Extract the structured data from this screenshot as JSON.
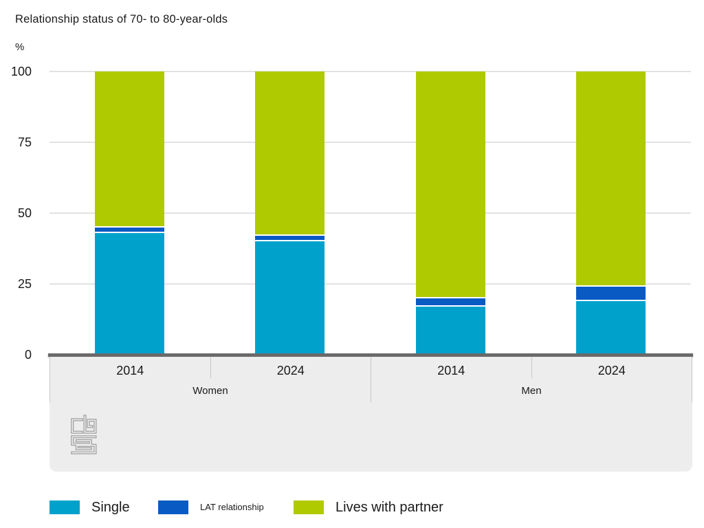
{
  "title": "Relationship status of 70- to 80-year-olds",
  "unit_label": "%",
  "chart_data": {
    "type": "bar",
    "stacked": true,
    "title": "Relationship status of 70- to 80-year-olds",
    "ylabel": "%",
    "ylim": [
      0,
      100
    ],
    "yticks": [
      0,
      25,
      50,
      75,
      100
    ],
    "grid": true,
    "legend_position": "bottom",
    "groups": [
      "Women",
      "Men"
    ],
    "categories": [
      "2014",
      "2024",
      "2014",
      "2024"
    ],
    "group_of_category": [
      "Women",
      "Women",
      "Men",
      "Men"
    ],
    "series": [
      {
        "name": "Single",
        "color": "#00a2cc",
        "values": [
          43,
          40,
          17,
          19
        ]
      },
      {
        "name": "LAT relationship",
        "color": "#0a5ac4",
        "values": [
          2,
          2,
          3,
          5
        ]
      },
      {
        "name": "Lives with partner",
        "color": "#b0ca02",
        "values": [
          55,
          58,
          80,
          76
        ]
      }
    ]
  },
  "legend": {
    "items": [
      {
        "label": "Single",
        "size": "large"
      },
      {
        "label": "LAT relationship",
        "size": "small"
      },
      {
        "label": "Lives with partner",
        "size": "large"
      }
    ]
  },
  "footer": {
    "logo_name": "cbs-logo"
  },
  "colors": {
    "single": "#00a2cc",
    "lat_relationship": "#0a5ac4",
    "lives_with_partner": "#b0ca02",
    "gridline": "#e2e2e2",
    "baseline": "#6a6a6a",
    "footer_background": "#ededed",
    "separator": "#c6c6c6",
    "text": "#1a1a1a",
    "logo": "#9d9d9d"
  }
}
